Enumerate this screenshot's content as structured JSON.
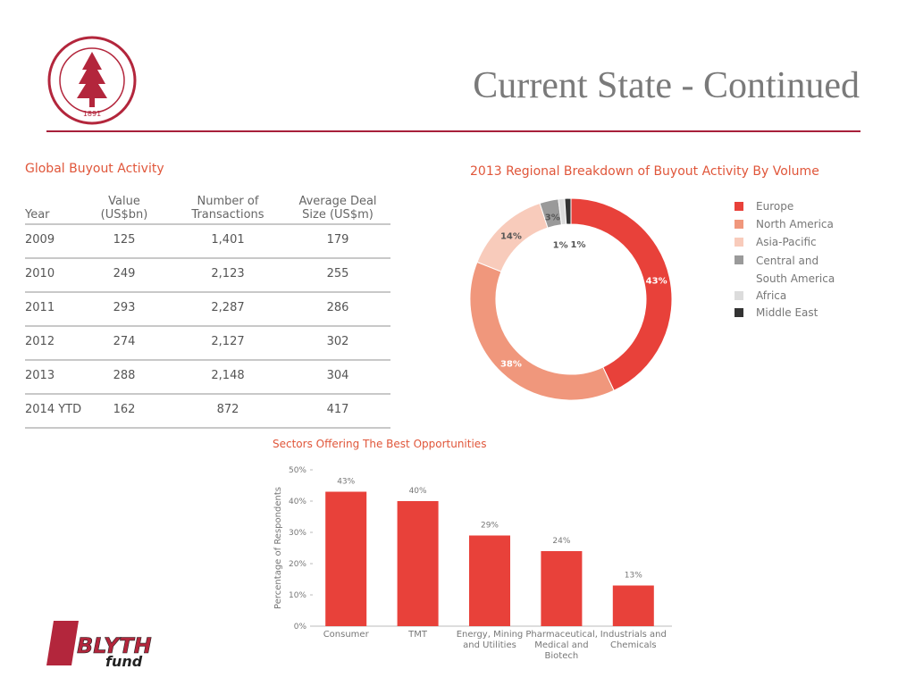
{
  "title": "Current State - Continued",
  "table": {
    "title": "Global Buyout Activity",
    "headers": [
      "Year",
      "Value (US$bn)",
      "Number of Transactions",
      "Average Deal Size (US$m)"
    ],
    "rows": [
      [
        "2009",
        "125",
        "1,401",
        "179"
      ],
      [
        "2010",
        "249",
        "2,123",
        "255"
      ],
      [
        "2011",
        "293",
        "2,287",
        "286"
      ],
      [
        "2012",
        "274",
        "2,127",
        "302"
      ],
      [
        "2013",
        "288",
        "2,148",
        "304"
      ],
      [
        "2014 YTD",
        "162",
        "872",
        "417"
      ]
    ]
  },
  "chart_data": [
    {
      "type": "donut",
      "title": "2013 Regional Breakdown of Buyout Activity By Volume",
      "categories": [
        "Europe",
        "North America",
        "Asia-Pacific",
        "Central and South America",
        "Africa",
        "Middle East"
      ],
      "values": [
        43,
        38,
        14,
        3,
        1,
        1
      ],
      "value_labels": [
        "43%",
        "38%",
        "14%",
        "3%",
        "1%",
        "1%"
      ],
      "colors": [
        "#e8413a",
        "#f0977c",
        "#f8cbbb",
        "#9a9a9a",
        "#dcdcdc",
        "#333333"
      ]
    },
    {
      "type": "bar",
      "title": "Sectors Offering The Best Opportunities",
      "y_label": "Percentage of Respondents",
      "categories": [
        "Consumer",
        "TMT",
        "Energy, Mining and Utilities",
        "Pharmaceutical, Medical and Biotech",
        "Industrials and Chemicals"
      ],
      "values": [
        43,
        40,
        29,
        24,
        13
      ],
      "value_labels": [
        "43%",
        "40%",
        "29%",
        "24%",
        "13%"
      ],
      "color": "#e8413a",
      "ylim": [
        0,
        50
      ],
      "yticks": [
        {
          "value": 0,
          "label": "0%"
        },
        {
          "value": 10,
          "label": "10%"
        },
        {
          "value": 20,
          "label": "20%"
        },
        {
          "value": 30,
          "label": "30%"
        },
        {
          "value": 40,
          "label": "40%"
        },
        {
          "value": 50,
          "label": "50%"
        }
      ]
    }
  ],
  "logos": {
    "seal_year": "1891",
    "blyth": "BLYTH",
    "fund": "fund"
  }
}
